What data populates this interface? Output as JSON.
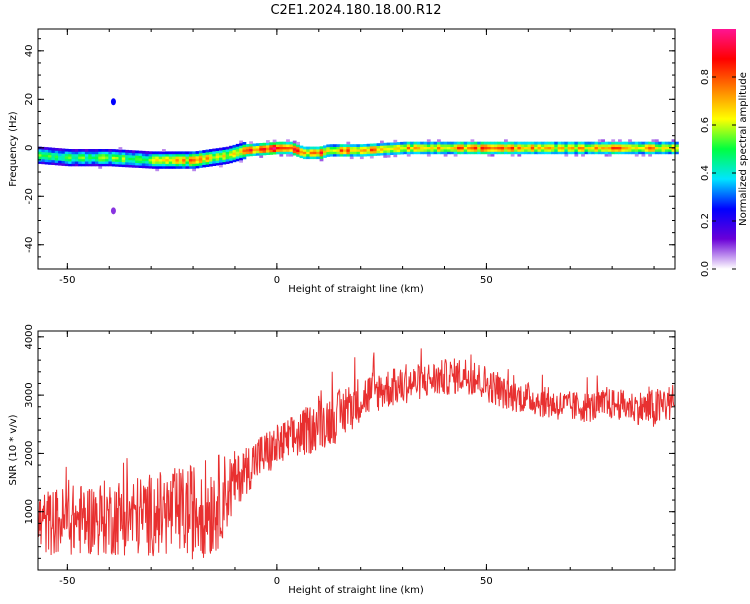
{
  "figure": {
    "title": "C2E1.2024.180.18.00.R12"
  },
  "chart_data": [
    {
      "type": "heatmap",
      "xlabel": "Height of straight line (km)",
      "ylabel": "Frequency (Hz)",
      "xlim": [
        -57,
        95
      ],
      "ylim": [
        -50,
        49
      ],
      "xticks": [
        -50,
        0,
        50
      ],
      "yticks": [
        40,
        20,
        0,
        -20,
        -40
      ],
      "grid": false,
      "colorbar": {
        "label": "Normalized spectral amplitude",
        "range": [
          0,
          1
        ],
        "ticks": [
          "0.0",
          "0.2",
          "0.4",
          "0.6",
          "0.8"
        ],
        "colors": [
          "#ffffff",
          "#6a00d8",
          "#0000ff",
          "#00e5ff",
          "#00ff40",
          "#ffff00",
          "#ff8000",
          "#ff0000",
          "#ff1493"
        ]
      },
      "ridge": {
        "description_points_x": [
          -57,
          -50,
          -40,
          -30,
          -20,
          -12,
          -8,
          0,
          3,
          6,
          10,
          12,
          15,
          20,
          30,
          40,
          50,
          60,
          70,
          80,
          95
        ],
        "center_freq_hz": [
          -3,
          -4,
          -4,
          -5,
          -5,
          -3,
          -1,
          0,
          0,
          -2,
          -2,
          -1,
          -1,
          -1,
          0,
          0,
          0,
          0,
          0,
          0,
          0
        ],
        "peak_amplitude": [
          0.55,
          0.5,
          0.55,
          0.6,
          0.75,
          0.6,
          0.8,
          0.95,
          0.9,
          0.75,
          0.85,
          0.7,
          0.8,
          0.75,
          0.7,
          0.75,
          0.8,
          0.75,
          0.7,
          0.8,
          0.7
        ]
      },
      "spurious_spots": [
        {
          "x": -39,
          "freq": 19,
          "amplitude": 0.25
        },
        {
          "x": -39,
          "freq": -26,
          "amplitude": 0.1
        }
      ]
    },
    {
      "type": "line",
      "xlabel": "Height of straight line (km)",
      "ylabel": "SNR (10 * v/v)",
      "xlim": [
        -57,
        95
      ],
      "ylim": [
        0,
        4100
      ],
      "xticks": [
        -50,
        0,
        50
      ],
      "yticks": [
        1000,
        2000,
        3000,
        4000
      ],
      "grid": false,
      "series": [
        {
          "color": "#e83030",
          "envelope_x": [
            -57,
            -50,
            -40,
            -30,
            -20,
            -15,
            -10,
            -5,
            0,
            5,
            10,
            15,
            20,
            25,
            30,
            35,
            40,
            45,
            50,
            55,
            60,
            65,
            70,
            75,
            80,
            85,
            90,
            95
          ],
          "mean": [
            800,
            850,
            900,
            950,
            1000,
            1100,
            1500,
            1900,
            2100,
            2300,
            2500,
            2650,
            2950,
            3100,
            3150,
            3250,
            3300,
            3350,
            3200,
            3000,
            2950,
            2850,
            2800,
            2800,
            2850,
            2800,
            2750,
            2900
          ],
          "spread": [
            500,
            550,
            600,
            650,
            750,
            800,
            500,
            450,
            450,
            450,
            500,
            500,
            450,
            400,
            350,
            350,
            350,
            350,
            350,
            300,
            300,
            300,
            300,
            300,
            300,
            300,
            400,
            350
          ]
        }
      ]
    }
  ]
}
